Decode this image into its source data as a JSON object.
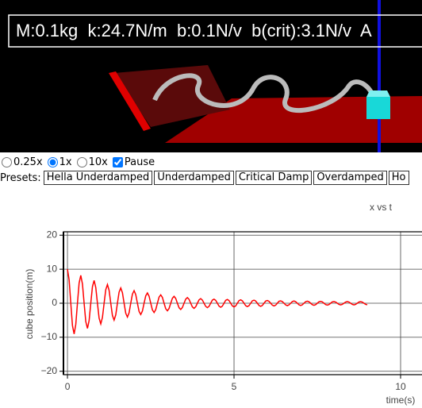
{
  "scene": {
    "info": "M:0.1kg  k:24.7N/m  b:0.1N/v  b(crit):3.1N/v  A"
  },
  "controls": {
    "speeds": [
      "0.25x",
      "1x",
      "10x"
    ],
    "pause": "Pause",
    "presets_label": "Presets:",
    "presets": [
      "Hella Underdamped",
      "Underdamped",
      "Critical Damp",
      "Overdamped",
      "Ho"
    ]
  },
  "chart_data": {
    "type": "line",
    "title": "x vs t",
    "x_label": "time(s)",
    "y_label": "cube position(m)",
    "color": "#ff0000",
    "xlim": [
      -0.12,
      11.5
    ],
    "ylim": [
      -21,
      21
    ],
    "xticks": [
      0,
      5,
      10
    ],
    "yticks": [
      {
        "value": -20,
        "label": "−20"
      },
      {
        "value": -10,
        "label": "−10"
      },
      0,
      10,
      20
    ],
    "grid": true,
    "x": [
      0,
      0.05,
      0.1,
      0.15,
      0.2,
      0.25,
      0.3,
      0.35,
      0.4,
      0.45,
      0.5,
      0.55,
      0.6,
      0.65,
      0.7,
      0.75,
      0.8,
      0.85,
      0.9,
      0.95,
      1,
      1.05,
      1.1,
      1.15,
      1.2,
      1.25,
      1.3,
      1.35,
      1.4,
      1.45,
      1.5,
      1.55,
      1.6,
      1.65,
      1.7,
      1.75,
      1.8,
      1.85,
      1.9,
      1.95,
      2,
      2.05,
      2.1,
      2.15,
      2.2,
      2.25,
      2.3,
      2.35,
      2.4,
      2.45,
      2.5,
      2.55,
      2.6,
      2.65,
      2.7,
      2.75,
      2.8,
      2.85,
      2.9,
      2.95,
      3,
      3.05,
      3.1,
      3.15,
      3.2,
      3.25,
      3.3,
      3.35,
      3.4,
      3.45,
      3.5,
      3.55,
      3.6,
      3.65,
      3.7,
      3.75,
      3.8,
      3.85,
      3.9,
      3.95,
      4,
      4.05,
      4.1,
      4.15,
      4.2,
      4.25,
      4.3,
      4.35,
      4.4,
      4.45,
      4.5,
      4.55,
      4.6,
      4.65,
      4.7,
      4.75,
      4.8,
      4.85,
      4.9,
      4.95,
      5,
      5.05,
      5.1,
      5.15,
      5.2,
      5.25,
      5.3,
      5.35,
      5.4,
      5.45,
      5.5,
      5.55,
      5.6,
      5.65,
      5.7,
      5.75,
      5.8,
      5.85,
      5.9,
      5.95,
      6,
      6.05,
      6.1,
      6.15,
      6.2,
      6.25,
      6.3,
      6.35,
      6.4,
      6.45,
      6.5,
      6.55,
      6.6,
      6.65,
      6.7,
      6.75,
      6.8,
      6.85,
      6.9,
      6.95,
      7,
      7.05,
      7.1,
      7.15,
      7.2,
      7.25,
      7.3,
      7.35,
      7.4,
      7.45,
      7.5,
      7.55,
      7.6,
      7.65,
      7.7,
      7.75,
      7.8,
      7.85,
      7.9,
      7.95,
      8,
      8.05,
      8.1,
      8.15,
      8.2,
      8.25,
      8.3,
      8.35,
      8.4,
      8.45,
      8.5,
      8.55,
      8.6,
      8.65,
      8.7,
      8.75,
      8.8,
      8.85,
      8.9,
      8.95,
      9
    ],
    "values": [
      10,
      6.9,
      0,
      -6.56,
      -9.05,
      -6.24,
      0,
      5.94,
      8.19,
      5.65,
      0,
      -5.37,
      -7.41,
      -5.11,
      0,
      4.86,
      6.7,
      4.62,
      0,
      -4.4,
      -6.07,
      -4.18,
      0,
      3.98,
      5.49,
      3.78,
      0,
      -3.6,
      -4.97,
      -3.42,
      0,
      3.26,
      4.49,
      3.1,
      0,
      -2.95,
      -4.07,
      -2.8,
      0,
      2.67,
      3.68,
      2.54,
      0,
      -2.41,
      -3.33,
      -2.3,
      0,
      2.18,
      3.01,
      2.08,
      0,
      -1.98,
      -2.73,
      -1.88,
      0,
      1.79,
      2.47,
      1.7,
      0,
      -1.62,
      -2.23,
      -1.54,
      0,
      1.46,
      2.02,
      1.39,
      0,
      -1.32,
      -1.83,
      -1.26,
      0,
      1.2,
      1.65,
      1.14,
      0,
      -1.08,
      -1.5,
      -1.03,
      0,
      0.98,
      1.35,
      0.92,
      0,
      -0.92,
      -1.3,
      -0.92,
      0,
      0.92,
      1.2,
      0.85,
      0,
      -0.85,
      -1.2,
      -0.85,
      0,
      0.85,
      1.1,
      0.78,
      0,
      -0.78,
      -1.1,
      -0.78,
      0,
      0.78,
      1,
      0.71,
      0,
      -0.71,
      -1,
      -0.71,
      0,
      0.71,
      0.9,
      0.64,
      0,
      -0.64,
      -0.9,
      -0.64,
      0,
      0.64,
      0.8,
      0.57,
      0,
      -0.57,
      -0.8,
      -0.57,
      0,
      0.57,
      0.7,
      0.49,
      0,
      -0.49,
      -0.7,
      -0.49,
      0,
      0.49,
      0.65,
      0.46,
      0,
      -0.46,
      -0.65,
      -0.46,
      0,
      0.46,
      0.6,
      0.42,
      0,
      -0.42,
      -0.6,
      -0.42,
      0,
      0.42,
      0.55,
      0.39,
      0,
      -0.39,
      -0.55,
      -0.39,
      0,
      0.39,
      0.5,
      0.35,
      0,
      -0.35,
      -0.5,
      -0.35,
      0,
      0.35,
      0.5,
      0.35,
      0,
      -0.35,
      -0.5,
      -0.35,
      0,
      0.35,
      0.45,
      0.32,
      0,
      -0.32,
      -0.45
    ]
  }
}
